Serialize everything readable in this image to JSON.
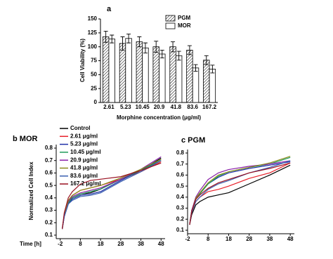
{
  "chart_data": [
    {
      "type": "bar",
      "title": "a",
      "ylabel": "Cell Viability (%)",
      "xlabel": "Morphine concentration (μg/ml)",
      "categories": [
        "2.61",
        "5.23",
        "10.45",
        "20.9",
        "41.8",
        "83.6",
        "167.2"
      ],
      "series": [
        {
          "name": "PGM",
          "color": "#000000",
          "hatch": true,
          "values": [
            118,
            106,
            109,
            100,
            100,
            94,
            76
          ],
          "errors": [
            10,
            12,
            9,
            10,
            9,
            8,
            8
          ]
        },
        {
          "name": "MOR",
          "color": "#ffffff",
          "hatch": false,
          "values": [
            114,
            115,
            98,
            87,
            84,
            62,
            60
          ],
          "errors": [
            7,
            8,
            9,
            7,
            8,
            6,
            7
          ]
        }
      ],
      "ylim": [
        0,
        150
      ],
      "yticks": [
        0,
        25,
        50,
        75,
        100,
        125,
        150
      ]
    },
    {
      "type": "line",
      "title": "b MOR",
      "ylabel": "Normalized Cell Index",
      "xlabel": "Time [h]",
      "x": [
        -1,
        0,
        2,
        4,
        8,
        13,
        18,
        28,
        38,
        48
      ],
      "series": [
        {
          "name": "Control",
          "color": "#000000",
          "values": [
            0.15,
            0.25,
            0.36,
            0.4,
            0.43,
            0.44,
            0.47,
            0.55,
            0.62,
            0.72
          ]
        },
        {
          "name": "2.61 μg/ml",
          "color": "#e8202a",
          "values": [
            0.15,
            0.26,
            0.37,
            0.42,
            0.46,
            0.48,
            0.5,
            0.55,
            0.61,
            0.69
          ]
        },
        {
          "name": "5.23 μg/ml",
          "color": "#1f2fa8",
          "values": [
            0.15,
            0.25,
            0.35,
            0.39,
            0.42,
            0.43,
            0.45,
            0.54,
            0.62,
            0.71
          ]
        },
        {
          "name": "10.45 μg/ml",
          "color": "#1f9a5a",
          "values": [
            0.15,
            0.26,
            0.36,
            0.4,
            0.43,
            0.45,
            0.47,
            0.55,
            0.62,
            0.7
          ]
        },
        {
          "name": "20.9 μg/ml",
          "color": "#8a1fa8",
          "values": [
            0.15,
            0.26,
            0.37,
            0.41,
            0.44,
            0.46,
            0.48,
            0.55,
            0.63,
            0.73
          ]
        },
        {
          "name": "41.8 μg/ml",
          "color": "#8a8a1a",
          "values": [
            0.15,
            0.27,
            0.38,
            0.42,
            0.46,
            0.48,
            0.5,
            0.56,
            0.63,
            0.71
          ]
        },
        {
          "name": "83.6 μg/ml",
          "color": "#3a5fb0",
          "values": [
            0.15,
            0.25,
            0.35,
            0.38,
            0.41,
            0.42,
            0.44,
            0.53,
            0.61,
            0.7
          ]
        },
        {
          "name": "167.2 μg/ml",
          "color": "#9a1020",
          "values": [
            0.15,
            0.28,
            0.4,
            0.45,
            0.51,
            0.54,
            0.55,
            0.57,
            0.62,
            0.68
          ]
        }
      ],
      "xlim": [
        -4,
        50
      ],
      "xticks": [
        -2,
        8,
        18,
        28,
        38,
        48
      ],
      "ylim": [
        0.1,
        0.8
      ],
      "yticks": [
        0.1,
        0.2,
        0.3,
        0.4,
        0.5,
        0.6,
        0.7,
        0.8
      ]
    },
    {
      "type": "line",
      "title": "c PGM",
      "x": [
        -1,
        0,
        2,
        4,
        8,
        13,
        18,
        28,
        38,
        48
      ],
      "series": [
        {
          "color": "#000000",
          "values": [
            0.15,
            0.24,
            0.33,
            0.36,
            0.4,
            0.42,
            0.44,
            0.52,
            0.6,
            0.69
          ]
        },
        {
          "color": "#e8202a",
          "values": [
            0.15,
            0.26,
            0.36,
            0.4,
            0.45,
            0.47,
            0.5,
            0.57,
            0.62,
            0.71
          ]
        },
        {
          "color": "#1f2fa8",
          "values": [
            0.15,
            0.27,
            0.38,
            0.43,
            0.52,
            0.58,
            0.62,
            0.66,
            0.69,
            0.72
          ]
        },
        {
          "color": "#1f9a5a",
          "values": [
            0.15,
            0.28,
            0.38,
            0.43,
            0.52,
            0.59,
            0.63,
            0.67,
            0.7,
            0.76
          ]
        },
        {
          "color": "#8a1fa8",
          "values": [
            0.15,
            0.28,
            0.4,
            0.46,
            0.56,
            0.62,
            0.65,
            0.68,
            0.7,
            0.73
          ]
        },
        {
          "color": "#8a8a1a",
          "values": [
            0.15,
            0.27,
            0.39,
            0.44,
            0.53,
            0.6,
            0.63,
            0.67,
            0.71,
            0.77
          ]
        },
        {
          "color": "#3a5fb0",
          "values": [
            0.15,
            0.26,
            0.36,
            0.4,
            0.47,
            0.52,
            0.55,
            0.62,
            0.67,
            0.73
          ]
        },
        {
          "color": "#9a1020",
          "values": [
            0.15,
            0.27,
            0.38,
            0.42,
            0.48,
            0.53,
            0.56,
            0.62,
            0.66,
            0.71
          ]
        }
      ],
      "xlim": [
        -2,
        50
      ],
      "xticks": [
        -2,
        8,
        18,
        28,
        38,
        48
      ],
      "ylim": [
        0.1,
        0.8
      ],
      "yticks": [
        0.1,
        0.2,
        0.3,
        0.4,
        0.5,
        0.6,
        0.7,
        0.8
      ]
    }
  ]
}
